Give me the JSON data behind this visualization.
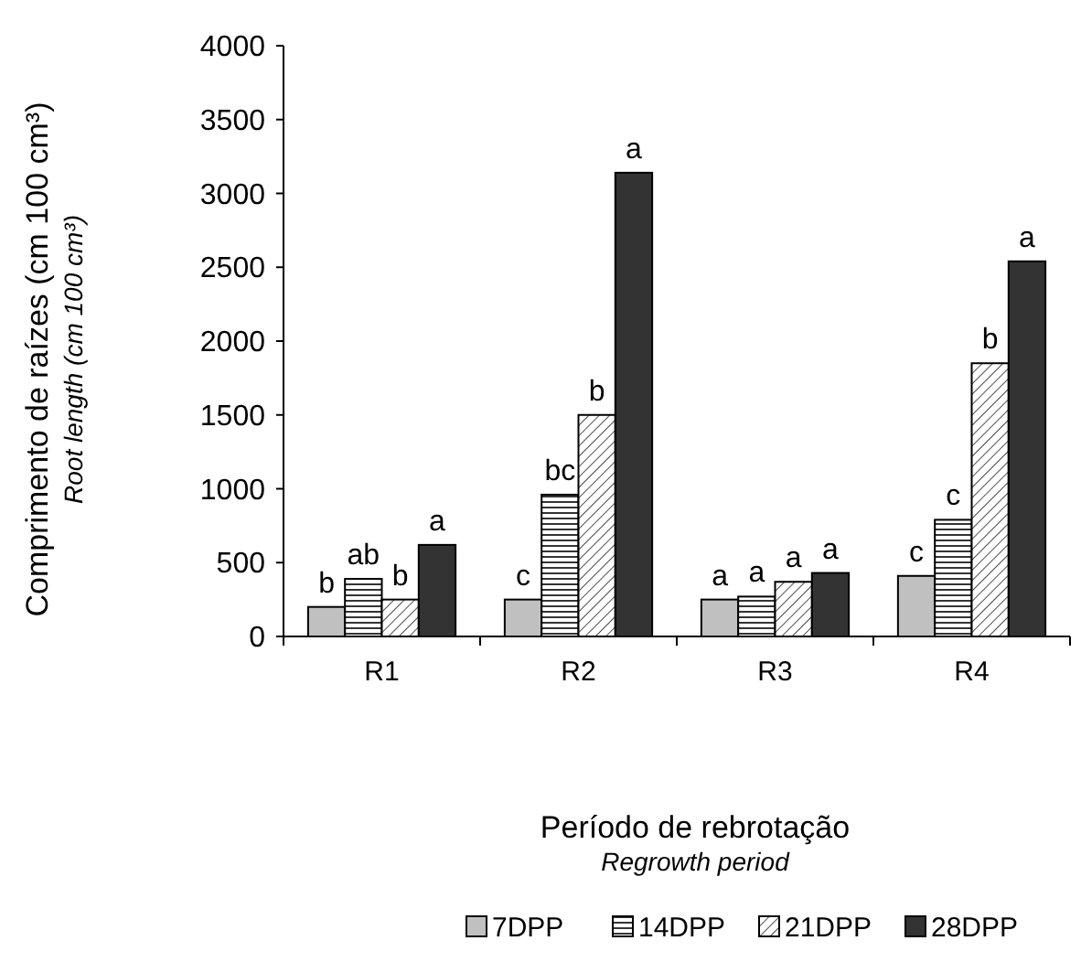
{
  "chart_data": {
    "type": "bar",
    "xlabel": "Período de rebrotação\nRegrowth period",
    "ylabel": "Comprimento de raízes (cm 100 cm³)\nRoot length (cm 100 cm³)",
    "categories": [
      "R1",
      "R2",
      "R3",
      "R4"
    ],
    "ylim": [
      0,
      4000
    ],
    "yticks": [
      0,
      500,
      1000,
      1500,
      2000,
      2500,
      3000,
      3500,
      4000
    ],
    "grid": false,
    "legend": "bottom",
    "series": [
      {
        "name": "7DPP",
        "color": "#c0c0c0",
        "values": [
          200,
          250,
          250,
          410
        ],
        "value_labels": [
          "b",
          "c",
          "a",
          "c"
        ]
      },
      {
        "name": "14DPP",
        "color": "#000000",
        "values": [
          390,
          960,
          270,
          790
        ],
        "value_labels": [
          "ab",
          "bc",
          "a",
          "c"
        ]
      },
      {
        "name": "21DPP",
        "color": "#000000",
        "values": [
          250,
          1500,
          370,
          1850
        ],
        "value_labels": [
          "b",
          "b",
          "a",
          "b"
        ]
      },
      {
        "name": "28DPP",
        "color": "#333333",
        "values": [
          620,
          3140,
          430,
          2540
        ],
        "value_labels": [
          "a",
          "a",
          "a",
          "a"
        ]
      }
    ]
  }
}
